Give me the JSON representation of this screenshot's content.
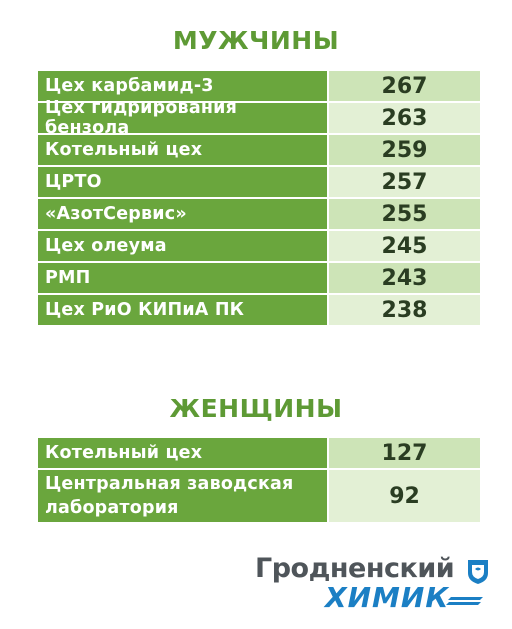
{
  "men": {
    "title": "МУЖЧИНЫ",
    "rows": [
      {
        "label": "Цех карбамид-3",
        "value": "267"
      },
      {
        "label": "Цех гидрирования бензола",
        "value": "263"
      },
      {
        "label": "Котельный цех",
        "value": "259"
      },
      {
        "label": "ЦРТО",
        "value": "257"
      },
      {
        "label": "«АзотСервис»",
        "value": "255"
      },
      {
        "label": "Цех олеума",
        "value": "245"
      },
      {
        "label": "РМП",
        "value": "243"
      },
      {
        "label": "Цех РиО КИПиА ПК",
        "value": "238"
      }
    ]
  },
  "women": {
    "title": "ЖЕНЩИНЫ",
    "rows": [
      {
        "label": "Котельный цех",
        "value": "127"
      },
      {
        "label_line1": "Центральная заводская",
        "label_line2": "лаборатория",
        "value": "92"
      }
    ]
  },
  "logo": {
    "line1": "Гродненский",
    "line2": "ХИМИК",
    "emblem_icon": "shield-emblem-icon"
  },
  "colors": {
    "label_green": "#6aa63d",
    "value_dark": "#cde4b7",
    "value_light": "#e3f0d5",
    "title_green": "#5e9a35",
    "logo_gray": "#4f555a",
    "logo_blue": "#1b7fc4"
  }
}
